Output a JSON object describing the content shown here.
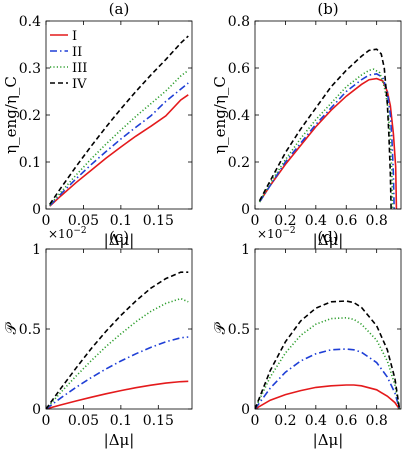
{
  "chart_data": [
    {
      "id": "a",
      "type": "line",
      "panel_label": "(a)",
      "xlabel": "|Δμ|",
      "ylabel": "η_eng/η_C",
      "xlim": [
        0,
        0.195
      ],
      "ylim": [
        0,
        0.4
      ],
      "xticks": [
        0,
        0.05,
        0.1,
        0.15
      ],
      "xtick_labels": [
        "0",
        "0.05",
        "0.1",
        "0.15"
      ],
      "yticks": [
        0,
        0.1,
        0.2,
        0.3,
        0.4
      ],
      "ytick_labels": [
        "0",
        "0.1",
        "0.2",
        "0.3",
        "0.4"
      ],
      "legend": {
        "position": "top-left",
        "entries": [
          "I",
          "II",
          "III",
          "IV"
        ]
      },
      "series": [
        {
          "name": "I",
          "color": "#e41a1c",
          "dash": "solid",
          "x": [
            0.005,
            0.02,
            0.04,
            0.06,
            0.08,
            0.1,
            0.12,
            0.14,
            0.16,
            0.18,
            0.19
          ],
          "y": [
            0.006,
            0.028,
            0.056,
            0.082,
            0.108,
            0.132,
            0.155,
            0.176,
            0.198,
            0.232,
            0.243
          ]
        },
        {
          "name": "II",
          "color": "#1f3fd6",
          "dash": "dashdot",
          "x": [
            0.005,
            0.02,
            0.04,
            0.06,
            0.08,
            0.1,
            0.12,
            0.14,
            0.16,
            0.18,
            0.19
          ],
          "y": [
            0.007,
            0.032,
            0.064,
            0.094,
            0.122,
            0.149,
            0.174,
            0.198,
            0.229,
            0.255,
            0.268
          ]
        },
        {
          "name": "III",
          "color": "#2e9e2e",
          "dash": "dotted",
          "x": [
            0.005,
            0.02,
            0.04,
            0.06,
            0.08,
            0.1,
            0.12,
            0.14,
            0.16,
            0.18,
            0.19
          ],
          "y": [
            0.008,
            0.036,
            0.072,
            0.106,
            0.138,
            0.168,
            0.197,
            0.224,
            0.251,
            0.283,
            0.295
          ]
        },
        {
          "name": "IV",
          "color": "#000000",
          "dash": "dashed",
          "x": [
            0.005,
            0.02,
            0.04,
            0.06,
            0.08,
            0.1,
            0.12,
            0.14,
            0.16,
            0.18,
            0.19
          ],
          "y": [
            0.01,
            0.045,
            0.09,
            0.133,
            0.174,
            0.213,
            0.25,
            0.285,
            0.318,
            0.353,
            0.368
          ]
        }
      ]
    },
    {
      "id": "b",
      "type": "line",
      "panel_label": "(b)",
      "xlabel": "|Δμ|",
      "ylabel": "η_eng/η_C",
      "xlim": [
        0,
        0.96
      ],
      "ylim": [
        0,
        0.8
      ],
      "xticks": [
        0,
        0.2,
        0.4,
        0.6,
        0.8
      ],
      "xtick_labels": [
        "0",
        "0.2",
        "0.4",
        "0.6",
        "0.8"
      ],
      "yticks": [
        0,
        0.2,
        0.4,
        0.6,
        0.8
      ],
      "ytick_labels": [
        "0",
        "0.2",
        "0.4",
        "0.6",
        "0.8"
      ],
      "series": [
        {
          "name": "I",
          "color": "#e41a1c",
          "dash": "solid",
          "x": [
            0.03,
            0.1,
            0.2,
            0.3,
            0.4,
            0.5,
            0.6,
            0.7,
            0.75,
            0.8,
            0.84,
            0.87,
            0.89,
            0.91,
            0.925,
            0.93
          ],
          "y": [
            0.03,
            0.1,
            0.19,
            0.27,
            0.35,
            0.42,
            0.48,
            0.53,
            0.55,
            0.555,
            0.545,
            0.5,
            0.44,
            0.32,
            0.18,
            0.0
          ]
        },
        {
          "name": "II",
          "color": "#1f3fd6",
          "dash": "dashdot",
          "x": [
            0.03,
            0.1,
            0.2,
            0.3,
            0.4,
            0.5,
            0.6,
            0.7,
            0.75,
            0.8,
            0.84,
            0.87,
            0.89,
            0.9,
            0.91,
            0.915
          ],
          "y": [
            0.03,
            0.1,
            0.2,
            0.28,
            0.36,
            0.43,
            0.5,
            0.55,
            0.57,
            0.575,
            0.56,
            0.5,
            0.4,
            0.3,
            0.15,
            0.0
          ]
        },
        {
          "name": "III",
          "color": "#2e9e2e",
          "dash": "dotted",
          "x": [
            0.03,
            0.1,
            0.2,
            0.3,
            0.4,
            0.5,
            0.6,
            0.7,
            0.75,
            0.78,
            0.82,
            0.85,
            0.87,
            0.89,
            0.9,
            0.905
          ],
          "y": [
            0.03,
            0.11,
            0.21,
            0.3,
            0.38,
            0.45,
            0.52,
            0.57,
            0.59,
            0.595,
            0.58,
            0.52,
            0.45,
            0.3,
            0.15,
            0.0
          ]
        },
        {
          "name": "IV",
          "color": "#000000",
          "dash": "dashed",
          "x": [
            0.03,
            0.1,
            0.2,
            0.3,
            0.4,
            0.5,
            0.6,
            0.7,
            0.75,
            0.8,
            0.83,
            0.85,
            0.87,
            0.88,
            0.89,
            0.895
          ],
          "y": [
            0.035,
            0.12,
            0.24,
            0.34,
            0.43,
            0.52,
            0.59,
            0.65,
            0.675,
            0.68,
            0.66,
            0.6,
            0.45,
            0.32,
            0.15,
            0.0
          ]
        }
      ]
    },
    {
      "id": "c",
      "type": "line",
      "panel_label": "(c)",
      "xlabel": "|Δμ|",
      "ylabel": "𝒫",
      "multiplier_label": "×10",
      "multiplier_exp": "−2",
      "xlim": [
        0,
        0.195
      ],
      "ylim": [
        0,
        1
      ],
      "xticks": [
        0,
        0.05,
        0.1,
        0.15
      ],
      "xtick_labels": [
        "0",
        "0.05",
        "0.1",
        "0.15"
      ],
      "yticks": [
        0,
        0.5,
        1
      ],
      "ytick_labels": [
        "0",
        "0.5",
        "1"
      ],
      "series": [
        {
          "name": "I",
          "color": "#e41a1c",
          "dash": "solid",
          "x": [
            0,
            0.02,
            0.04,
            0.06,
            0.08,
            0.1,
            0.12,
            0.14,
            0.16,
            0.18,
            0.19
          ],
          "y": [
            0,
            0.026,
            0.05,
            0.073,
            0.095,
            0.115,
            0.133,
            0.149,
            0.162,
            0.171,
            0.173
          ]
        },
        {
          "name": "II",
          "color": "#1f3fd6",
          "dash": "dashdot",
          "x": [
            0,
            0.02,
            0.04,
            0.06,
            0.08,
            0.1,
            0.12,
            0.14,
            0.16,
            0.18,
            0.19
          ],
          "y": [
            0,
            0.07,
            0.135,
            0.195,
            0.25,
            0.3,
            0.345,
            0.385,
            0.42,
            0.445,
            0.45
          ]
        },
        {
          "name": "III",
          "color": "#2e9e2e",
          "dash": "dotted",
          "x": [
            0,
            0.02,
            0.04,
            0.06,
            0.08,
            0.1,
            0.12,
            0.14,
            0.16,
            0.18,
            0.19
          ],
          "y": [
            0,
            0.105,
            0.205,
            0.3,
            0.39,
            0.47,
            0.545,
            0.61,
            0.66,
            0.69,
            0.67
          ]
        },
        {
          "name": "IV",
          "color": "#000000",
          "dash": "dashed",
          "x": [
            0,
            0.02,
            0.04,
            0.06,
            0.08,
            0.1,
            0.12,
            0.14,
            0.16,
            0.18,
            0.19
          ],
          "y": [
            0,
            0.13,
            0.255,
            0.375,
            0.485,
            0.585,
            0.675,
            0.755,
            0.815,
            0.855,
            0.855
          ]
        }
      ]
    },
    {
      "id": "d",
      "type": "line",
      "panel_label": "(d)",
      "xlabel": "|Δμ|",
      "ylabel": "𝒫",
      "multiplier_label": "×10",
      "multiplier_exp": "−2",
      "xlim": [
        0,
        0.96
      ],
      "ylim": [
        0,
        1
      ],
      "xticks": [
        0,
        0.2,
        0.4,
        0.6,
        0.8
      ],
      "xtick_labels": [
        "0",
        "0.2",
        "0.4",
        "0.6",
        "0.8"
      ],
      "yticks": [
        0,
        0.5,
        1
      ],
      "ytick_labels": [
        "0",
        "0.5",
        "1"
      ],
      "series": [
        {
          "name": "I",
          "color": "#e41a1c",
          "dash": "solid",
          "x": [
            0,
            0.1,
            0.2,
            0.3,
            0.4,
            0.5,
            0.6,
            0.65,
            0.7,
            0.8,
            0.87,
            0.92,
            0.95
          ],
          "y": [
            0,
            0.055,
            0.09,
            0.115,
            0.135,
            0.145,
            0.15,
            0.15,
            0.145,
            0.12,
            0.08,
            0.04,
            0.0
          ]
        },
        {
          "name": "II",
          "color": "#1f3fd6",
          "dash": "dashdot",
          "x": [
            0,
            0.1,
            0.2,
            0.3,
            0.4,
            0.5,
            0.6,
            0.65,
            0.7,
            0.8,
            0.87,
            0.92,
            0.95
          ],
          "y": [
            0,
            0.13,
            0.23,
            0.3,
            0.345,
            0.37,
            0.375,
            0.37,
            0.355,
            0.29,
            0.2,
            0.1,
            0.0
          ]
        },
        {
          "name": "III",
          "color": "#2e9e2e",
          "dash": "dotted",
          "x": [
            0,
            0.1,
            0.2,
            0.3,
            0.4,
            0.5,
            0.6,
            0.65,
            0.7,
            0.8,
            0.87,
            0.92,
            0.95
          ],
          "y": [
            0,
            0.2,
            0.35,
            0.46,
            0.53,
            0.565,
            0.57,
            0.56,
            0.53,
            0.43,
            0.3,
            0.15,
            0.0
          ]
        },
        {
          "name": "IV",
          "color": "#000000",
          "dash": "dashed",
          "x": [
            0,
            0.1,
            0.2,
            0.3,
            0.4,
            0.5,
            0.6,
            0.65,
            0.7,
            0.8,
            0.87,
            0.92,
            0.95
          ],
          "y": [
            0,
            0.24,
            0.42,
            0.55,
            0.63,
            0.67,
            0.675,
            0.665,
            0.635,
            0.52,
            0.37,
            0.19,
            0.0
          ]
        }
      ]
    }
  ]
}
